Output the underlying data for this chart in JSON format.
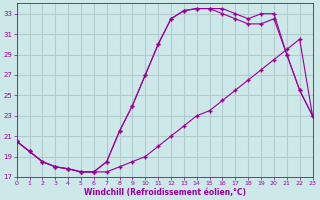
{
  "xlabel": "Windchill (Refroidissement éolien,°C)",
  "bg_color": "#cce8e8",
  "grid_color": "#b0cccc",
  "line_color": "#990099",
  "marker": "+",
  "xlim": [
    0,
    23
  ],
  "ylim": [
    17,
    34
  ],
  "xticks": [
    0,
    1,
    2,
    3,
    4,
    5,
    6,
    7,
    8,
    9,
    10,
    11,
    12,
    13,
    14,
    15,
    16,
    17,
    18,
    19,
    20,
    21,
    22,
    23
  ],
  "yticks": [
    17,
    19,
    21,
    23,
    25,
    27,
    29,
    31,
    33
  ],
  "line1_x": [
    0,
    1,
    2,
    3,
    4,
    5,
    6,
    7,
    8,
    9,
    10,
    11,
    12,
    13,
    14,
    15,
    16,
    17,
    18,
    19,
    20,
    21,
    22,
    23
  ],
  "line1_y": [
    20.5,
    19.5,
    18.5,
    18.0,
    17.8,
    17.5,
    17.5,
    18.5,
    21.5,
    24.0,
    27.0,
    30.0,
    32.5,
    33.3,
    33.5,
    33.5,
    33.5,
    33.0,
    32.5,
    33.0,
    33.0,
    29.0,
    25.5,
    23.0
  ],
  "line2_x": [
    0,
    1,
    2,
    3,
    4,
    5,
    6,
    7,
    8,
    9,
    10,
    11,
    12,
    13,
    14,
    15,
    16,
    17,
    18,
    19,
    20,
    21,
    22,
    23
  ],
  "line2_y": [
    20.5,
    19.5,
    18.5,
    18.0,
    17.8,
    17.5,
    17.5,
    18.5,
    21.5,
    24.0,
    27.0,
    30.0,
    32.5,
    33.3,
    33.5,
    33.5,
    33.0,
    32.5,
    32.0,
    32.0,
    32.5,
    29.0,
    25.5,
    23.0
  ],
  "line3_x": [
    0,
    1,
    2,
    3,
    4,
    5,
    6,
    7,
    8,
    9,
    10,
    11,
    12,
    13,
    14,
    15,
    16,
    17,
    18,
    19,
    20,
    21,
    22,
    23
  ],
  "line3_y": [
    20.5,
    19.5,
    18.5,
    18.0,
    17.8,
    17.5,
    17.5,
    17.5,
    18.0,
    18.5,
    19.0,
    20.0,
    21.0,
    22.0,
    23.0,
    23.5,
    24.5,
    25.5,
    26.5,
    27.5,
    28.5,
    29.5,
    30.5,
    23.0
  ]
}
